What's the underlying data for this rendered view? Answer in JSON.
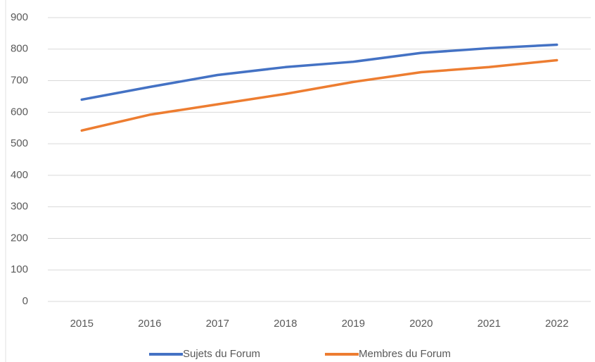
{
  "chart_data": {
    "type": "line",
    "categories": [
      "2015",
      "2016",
      "2017",
      "2018",
      "2019",
      "2020",
      "2021",
      "2022"
    ],
    "series": [
      {
        "name": "Sujets du Forum",
        "color": "#4472c4",
        "values": [
          640,
          680,
          718,
          743,
          760,
          788,
          803,
          814
        ]
      },
      {
        "name": "Membres du Forum",
        "color": "#ed7d31",
        "values": [
          542,
          592,
          625,
          658,
          696,
          727,
          743,
          765
        ]
      }
    ],
    "ylim": [
      0,
      900
    ],
    "yticks": [
      0,
      100,
      200,
      300,
      400,
      500,
      600,
      700,
      800,
      900
    ],
    "grid": true,
    "legend": "bottom"
  }
}
